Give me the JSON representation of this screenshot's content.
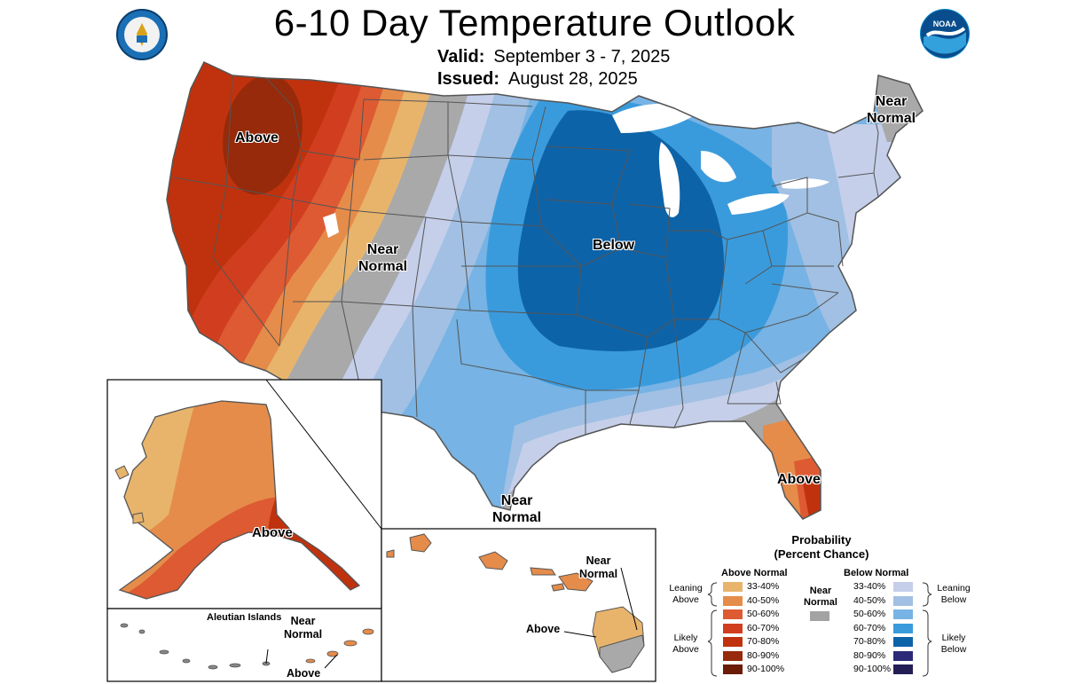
{
  "header": {
    "title": "6-10 Day Temperature Outlook",
    "valid_label": "Valid:",
    "valid_value": "September 3 - 7, 2025",
    "issued_label": "Issued:",
    "issued_value": "August 28, 2025"
  },
  "logos": {
    "left_icon": "department-of-commerce-seal",
    "right_icon": "noaa-logo",
    "right_text": "NOAA"
  },
  "map_labels": {
    "above_nw": "Above",
    "near_normal_west_1": "Near",
    "near_normal_west_2": "Normal",
    "below_central": "Below",
    "near_normal_ne_1": "Near",
    "near_normal_ne_2": "Normal",
    "near_normal_tx_1": "Near",
    "near_normal_tx_2": "Normal",
    "above_fl": "Above",
    "above_ak": "Above",
    "aleutian_islands": "Aleutian Islands",
    "near_normal_aleut_1": "Near",
    "near_normal_aleut_2": "Normal",
    "above_aleut": "Above",
    "near_normal_hi_1": "Near",
    "near_normal_hi_2": "Normal",
    "above_hi": "Above"
  },
  "legend": {
    "title_1": "Probability",
    "title_2": "(Percent Chance)",
    "above_header": "Above Normal",
    "below_header": "Below Normal",
    "near_label_1": "Near",
    "near_label_2": "Normal",
    "leaning_above_1": "Leaning",
    "leaning_above_2": "Above",
    "likely_above_1": "Likely",
    "likely_above_2": "Above",
    "leaning_below_1": "Leaning",
    "leaning_below_2": "Below",
    "likely_below_1": "Likely",
    "likely_below_2": "Below",
    "above_rows": [
      {
        "label": "33-40%",
        "color": "#E8B46C"
      },
      {
        "label": "40-50%",
        "color": "#E58C4A"
      },
      {
        "label": "50-60%",
        "color": "#DD5A33"
      },
      {
        "label": "60-70%",
        "color": "#D13E1F"
      },
      {
        "label": "70-80%",
        "color": "#C0320D"
      },
      {
        "label": "80-90%",
        "color": "#962A0A"
      },
      {
        "label": "90-100%",
        "color": "#6B1B06"
      }
    ],
    "below_rows": [
      {
        "label": "33-40%",
        "color": "#C5CFEA"
      },
      {
        "label": "40-50%",
        "color": "#A1C0E3"
      },
      {
        "label": "50-60%",
        "color": "#77B3E4"
      },
      {
        "label": "60-70%",
        "color": "#3A9BDC"
      },
      {
        "label": "70-80%",
        "color": "#0D63A8"
      },
      {
        "label": "80-90%",
        "color": "#2A2A78"
      },
      {
        "label": "90-100%",
        "color": "#231E55"
      }
    ],
    "near_color": "#A3A3A3"
  },
  "colors": {
    "state_border": "#555555",
    "near_normal": "#A9A9A9"
  }
}
